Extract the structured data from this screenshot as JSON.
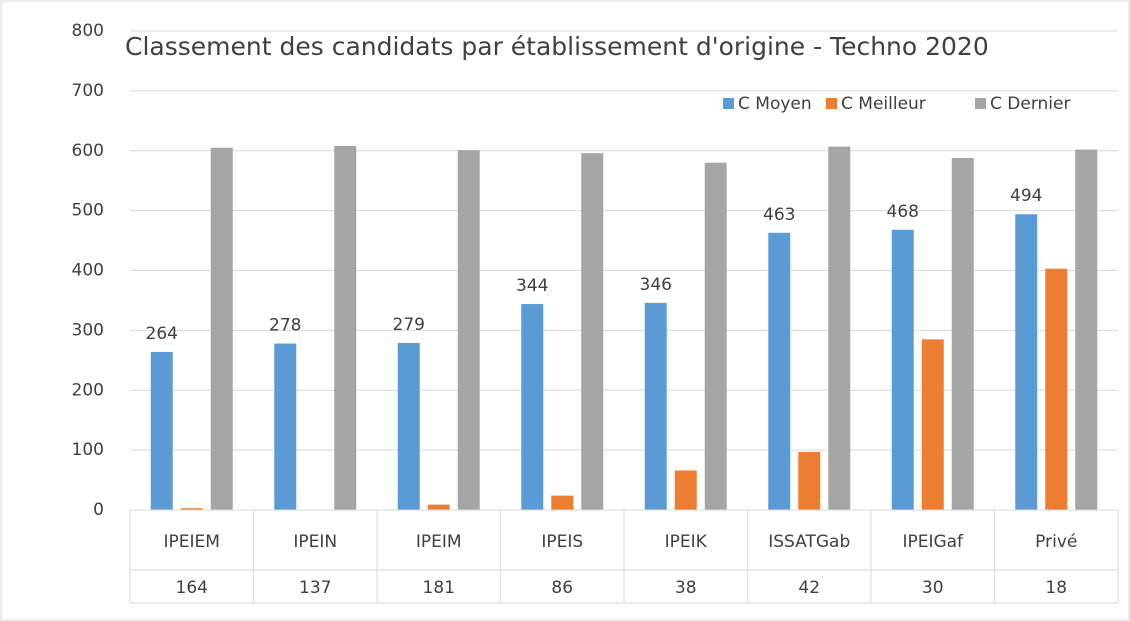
{
  "chart_data": {
    "type": "bar",
    "title": "Classement des candidats par établissement d'origine - Techno 2020",
    "categories": [
      "IPEIEM",
      "IPEIN",
      "IPEIM",
      "IPEIS",
      "IPEIK",
      "ISSATGab",
      "IPEIGaf",
      "Privé"
    ],
    "category_counts": [
      164,
      137,
      181,
      86,
      38,
      42,
      30,
      18
    ],
    "series": [
      {
        "name": "C Moyen",
        "color": "#5b9bd5",
        "values": [
          264,
          278,
          279,
          344,
          346,
          463,
          468,
          494
        ],
        "show_labels": true
      },
      {
        "name": "C Meilleur",
        "color": "#ed7d31",
        "values": [
          3,
          0,
          9,
          24,
          66,
          97,
          285,
          403
        ],
        "show_labels": false
      },
      {
        "name": "C Dernier",
        "color": "#a5a5a5",
        "values": [
          605,
          608,
          601,
          596,
          580,
          607,
          588,
          602
        ],
        "show_labels": false
      }
    ],
    "ylim": [
      0,
      800
    ],
    "yticks": [
      0,
      100,
      200,
      300,
      400,
      500,
      600,
      700,
      800
    ],
    "grid": true,
    "legend": "top-right"
  }
}
